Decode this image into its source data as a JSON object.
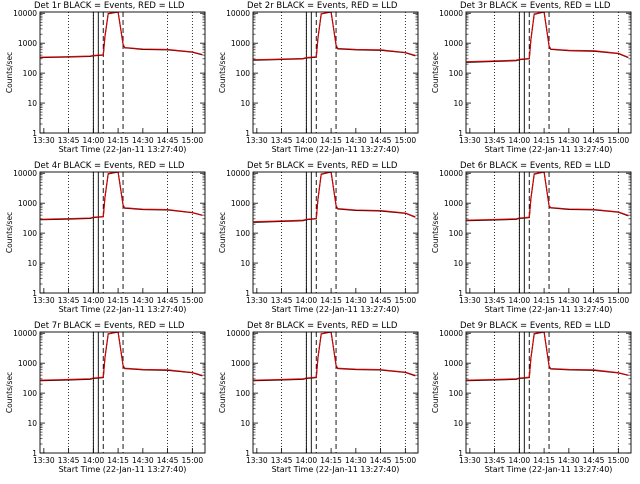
{
  "figure": {
    "rows": 3,
    "cols": 3,
    "colors": {
      "events": "#000000",
      "lld": "#dd0000",
      "axis": "#000000",
      "background": "#ffffff"
    }
  },
  "chart_data": [
    {
      "type": "line",
      "title": "Det 1r BLACK = Events, RED = LLD",
      "xlabel": "Start Time (22-Jan-11 13:27:40)",
      "ylabel": "Counts/sec",
      "yscale": "log",
      "ylim": [
        1,
        11000
      ],
      "xlim": [
        "13:27:40",
        "15:07:40"
      ],
      "x_ticks": [
        "13:30",
        "13:45",
        "14:00",
        "14:15",
        "14:30",
        "14:45",
        "15:00"
      ],
      "y_ticks": [
        "1",
        "10",
        "100",
        "1000",
        "10000"
      ],
      "dotted_lines": [
        "13:45",
        "14:00",
        "14:45",
        "15:00"
      ],
      "solid_lines": [
        "14:00",
        "14:03"
      ],
      "dashed_lines": [
        "14:06",
        "14:18"
      ],
      "series": [
        {
          "name": "Events",
          "color": "#000000",
          "x": [
            "13:28",
            "13:40",
            "13:58",
            "14:00",
            "14:06",
            "14:07",
            "14:09",
            "14:15",
            "14:18",
            "14:19",
            "14:30",
            "14:45",
            "15:00",
            "15:06"
          ],
          "y": [
            330,
            340,
            360,
            380,
            400,
            1600,
            9600,
            11000,
            900,
            700,
            620,
            600,
            500,
            410
          ]
        },
        {
          "name": "LLD",
          "color": "#dd0000",
          "x": [
            "13:28",
            "13:40",
            "13:58",
            "14:00",
            "14:06",
            "14:07",
            "14:09",
            "14:15",
            "14:18",
            "14:19",
            "14:30",
            "14:45",
            "15:00",
            "15:06"
          ],
          "y": [
            340,
            350,
            370,
            390,
            410,
            1650,
            9800,
            11000,
            920,
            720,
            640,
            620,
            510,
            420
          ]
        }
      ]
    },
    {
      "type": "line",
      "title": "Det 2r BLACK = Events, RED = LLD",
      "xlabel": "Start Time (22-Jan-11 13:27:40)",
      "ylabel": "Counts/sec",
      "yscale": "log",
      "ylim": [
        1,
        11000
      ],
      "xlim": [
        "13:27:40",
        "15:07:40"
      ],
      "x_ticks": [
        "13:30",
        "13:45",
        "14:00",
        "14:15",
        "14:30",
        "14:45",
        "15:00"
      ],
      "y_ticks": [
        "1",
        "10",
        "100",
        "1000",
        "10000"
      ],
      "dotted_lines": [
        "13:45",
        "14:00",
        "14:45",
        "15:00"
      ],
      "solid_lines": [
        "14:00",
        "14:03"
      ],
      "dashed_lines": [
        "14:06",
        "14:18"
      ],
      "series": [
        {
          "name": "Events",
          "color": "#000000",
          "x": [
            "13:28",
            "13:40",
            "13:58",
            "14:00",
            "14:06",
            "14:07",
            "14:09",
            "14:15",
            "14:18",
            "14:19",
            "14:30",
            "14:45",
            "15:00",
            "15:06"
          ],
          "y": [
            270,
            280,
            300,
            320,
            340,
            1400,
            9400,
            11000,
            850,
            650,
            600,
            580,
            480,
            380
          ]
        },
        {
          "name": "LLD",
          "color": "#dd0000",
          "x": [
            "13:28",
            "13:40",
            "13:58",
            "14:00",
            "14:06",
            "14:07",
            "14:09",
            "14:15",
            "14:18",
            "14:19",
            "14:30",
            "14:45",
            "15:00",
            "15:06"
          ],
          "y": [
            280,
            290,
            310,
            330,
            350,
            1450,
            9600,
            11000,
            870,
            670,
            620,
            600,
            490,
            390
          ]
        }
      ]
    },
    {
      "type": "line",
      "title": "Det 3r BLACK = Events, RED = LLD",
      "xlabel": "Start Time (22-Jan-11 13:27:40)",
      "ylabel": "Counts/sec",
      "yscale": "log",
      "ylim": [
        1,
        11000
      ],
      "xlim": [
        "13:27:40",
        "15:07:40"
      ],
      "x_ticks": [
        "13:30",
        "13:45",
        "14:00",
        "14:15",
        "14:30",
        "14:45",
        "15:00"
      ],
      "y_ticks": [
        "1",
        "10",
        "100",
        "1000",
        "10000"
      ],
      "dotted_lines": [
        "13:45",
        "14:00",
        "14:45",
        "15:00"
      ],
      "solid_lines": [
        "14:00",
        "14:03"
      ],
      "dashed_lines": [
        "14:06",
        "14:18"
      ],
      "series": [
        {
          "name": "Events",
          "color": "#000000",
          "x": [
            "13:28",
            "13:40",
            "13:58",
            "14:00",
            "14:06",
            "14:07",
            "14:09",
            "14:15",
            "14:18",
            "14:19",
            "14:30",
            "14:45",
            "15:00",
            "15:06"
          ],
          "y": [
            230,
            240,
            260,
            280,
            300,
            1300,
            9200,
            11000,
            800,
            620,
            560,
            540,
            450,
            330
          ]
        },
        {
          "name": "LLD",
          "color": "#dd0000",
          "x": [
            "13:28",
            "13:40",
            "13:58",
            "14:00",
            "14:06",
            "14:07",
            "14:09",
            "14:15",
            "14:18",
            "14:19",
            "14:30",
            "14:45",
            "15:00",
            "15:06"
          ],
          "y": [
            240,
            250,
            270,
            290,
            310,
            1350,
            9400,
            11000,
            820,
            640,
            580,
            560,
            460,
            340
          ]
        }
      ]
    },
    {
      "type": "line",
      "title": "Det 4r BLACK = Events, RED = LLD",
      "xlabel": "Start Time (22-Jan-11 13:27:40)",
      "ylabel": "Counts/sec",
      "yscale": "log",
      "ylim": [
        1,
        11000
      ],
      "xlim": [
        "13:27:40",
        "15:07:40"
      ],
      "x_ticks": [
        "13:30",
        "13:45",
        "14:00",
        "14:15",
        "14:30",
        "14:45",
        "15:00"
      ],
      "y_ticks": [
        "1",
        "10",
        "100",
        "1000",
        "10000"
      ],
      "dotted_lines": [
        "13:45",
        "14:00",
        "14:45",
        "15:00"
      ],
      "solid_lines": [
        "14:00",
        "14:03"
      ],
      "dashed_lines": [
        "14:06",
        "14:18"
      ],
      "series": [
        {
          "name": "Events",
          "color": "#000000",
          "x": [
            "13:28",
            "13:40",
            "13:58",
            "14:00",
            "14:06",
            "14:07",
            "14:09",
            "14:15",
            "14:18",
            "14:19",
            "14:30",
            "14:45",
            "15:00",
            "15:06"
          ],
          "y": [
            280,
            290,
            310,
            330,
            350,
            1500,
            9500,
            11000,
            850,
            680,
            610,
            590,
            480,
            390
          ]
        },
        {
          "name": "LLD",
          "color": "#dd0000",
          "x": [
            "13:28",
            "13:40",
            "13:58",
            "14:00",
            "14:06",
            "14:07",
            "14:09",
            "14:15",
            "14:18",
            "14:19",
            "14:30",
            "14:45",
            "15:00",
            "15:06"
          ],
          "y": [
            290,
            300,
            320,
            340,
            360,
            1550,
            9700,
            11000,
            870,
            700,
            630,
            610,
            490,
            400
          ]
        }
      ]
    },
    {
      "type": "line",
      "title": "Det 5r BLACK = Events, RED = LLD",
      "xlabel": "Start Time (22-Jan-11 13:27:40)",
      "ylabel": "Counts/sec",
      "yscale": "log",
      "ylim": [
        1,
        11000
      ],
      "xlim": [
        "13:27:40",
        "15:07:40"
      ],
      "x_ticks": [
        "13:30",
        "13:45",
        "14:00",
        "14:15",
        "14:30",
        "14:45",
        "15:00"
      ],
      "y_ticks": [
        "1",
        "10",
        "100",
        "1000",
        "10000"
      ],
      "dotted_lines": [
        "13:45",
        "14:00",
        "14:45",
        "15:00"
      ],
      "solid_lines": [
        "14:00",
        "14:03"
      ],
      "dashed_lines": [
        "14:06",
        "14:18"
      ],
      "series": [
        {
          "name": "Events",
          "color": "#000000",
          "x": [
            "13:28",
            "13:40",
            "13:58",
            "14:00",
            "14:06",
            "14:07",
            "14:09",
            "14:15",
            "14:18",
            "14:19",
            "14:30",
            "14:45",
            "15:00",
            "15:06"
          ],
          "y": [
            230,
            240,
            260,
            280,
            300,
            1300,
            9200,
            11000,
            820,
            640,
            570,
            550,
            460,
            340
          ]
        },
        {
          "name": "LLD",
          "color": "#dd0000",
          "x": [
            "13:28",
            "13:40",
            "13:58",
            "14:00",
            "14:06",
            "14:07",
            "14:09",
            "14:15",
            "14:18",
            "14:19",
            "14:30",
            "14:45",
            "15:00",
            "15:06"
          ],
          "y": [
            240,
            250,
            270,
            290,
            310,
            1350,
            9400,
            11000,
            840,
            660,
            590,
            570,
            470,
            350
          ]
        }
      ]
    },
    {
      "type": "line",
      "title": "Det 6r BLACK = Events, RED = LLD",
      "xlabel": "Start Time (22-Jan-11 13:27:40)",
      "ylabel": "Counts/sec",
      "yscale": "log",
      "ylim": [
        1,
        11000
      ],
      "xlim": [
        "13:27:40",
        "15:07:40"
      ],
      "x_ticks": [
        "13:30",
        "13:45",
        "14:00",
        "14:15",
        "14:30",
        "14:45",
        "15:00"
      ],
      "y_ticks": [
        "1",
        "10",
        "100",
        "1000",
        "10000"
      ],
      "dotted_lines": [
        "13:45",
        "14:00",
        "14:45",
        "15:00"
      ],
      "solid_lines": [
        "14:00",
        "14:03"
      ],
      "dashed_lines": [
        "14:06",
        "14:18"
      ],
      "series": [
        {
          "name": "Events",
          "color": "#000000",
          "x": [
            "13:28",
            "13:40",
            "13:58",
            "14:00",
            "14:06",
            "14:07",
            "14:09",
            "14:15",
            "14:18",
            "14:19",
            "14:30",
            "14:45",
            "15:00",
            "15:06"
          ],
          "y": [
            260,
            270,
            290,
            310,
            330,
            1400,
            9300,
            11000,
            800,
            700,
            620,
            600,
            500,
            380
          ]
        },
        {
          "name": "LLD",
          "color": "#dd0000",
          "x": [
            "13:28",
            "13:40",
            "13:58",
            "14:00",
            "14:06",
            "14:07",
            "14:09",
            "14:15",
            "14:18",
            "14:19",
            "14:30",
            "14:45",
            "15:00",
            "15:06"
          ],
          "y": [
            270,
            280,
            300,
            320,
            340,
            1450,
            9500,
            11000,
            820,
            720,
            640,
            620,
            510,
            390
          ]
        }
      ]
    },
    {
      "type": "line",
      "title": "Det 7r BLACK = Events, RED = LLD",
      "xlabel": "Start Time (22-Jan-11 13:27:40)",
      "ylabel": "Counts/sec",
      "yscale": "log",
      "ylim": [
        1,
        11000
      ],
      "xlim": [
        "13:27:40",
        "15:07:40"
      ],
      "x_ticks": [
        "13:30",
        "13:45",
        "14:00",
        "14:15",
        "14:30",
        "14:45",
        "15:00"
      ],
      "y_ticks": [
        "1",
        "10",
        "100",
        "1000",
        "10000"
      ],
      "dotted_lines": [
        "13:45",
        "14:00",
        "14:45",
        "15:00"
      ],
      "solid_lines": [
        "14:00",
        "14:03"
      ],
      "dashed_lines": [
        "14:06",
        "14:18"
      ],
      "series": [
        {
          "name": "Events",
          "color": "#000000",
          "x": [
            "13:28",
            "13:40",
            "13:58",
            "14:00",
            "14:06",
            "14:07",
            "14:09",
            "14:15",
            "14:18",
            "14:19",
            "14:30",
            "14:45",
            "15:00",
            "15:06"
          ],
          "y": [
            260,
            270,
            290,
            310,
            330,
            1450,
            9400,
            11000,
            820,
            660,
            600,
            580,
            480,
            380
          ]
        },
        {
          "name": "LLD",
          "color": "#dd0000",
          "x": [
            "13:28",
            "13:40",
            "13:58",
            "14:00",
            "14:06",
            "14:07",
            "14:09",
            "14:15",
            "14:18",
            "14:19",
            "14:30",
            "14:45",
            "15:00",
            "15:06"
          ],
          "y": [
            270,
            280,
            300,
            320,
            340,
            1500,
            9600,
            11000,
            840,
            680,
            620,
            600,
            490,
            390
          ]
        }
      ]
    },
    {
      "type": "line",
      "title": "Det 8r BLACK = Events, RED = LLD",
      "xlabel": "Start Time (22-Jan-11 13:27:40)",
      "ylabel": "Counts/sec",
      "yscale": "log",
      "ylim": [
        1,
        11000
      ],
      "xlim": [
        "13:27:40",
        "15:07:40"
      ],
      "x_ticks": [
        "13:30",
        "13:45",
        "14:00",
        "14:15",
        "14:30",
        "14:45",
        "15:00"
      ],
      "y_ticks": [
        "1",
        "10",
        "100",
        "1000",
        "10000"
      ],
      "dotted_lines": [
        "13:45",
        "14:00",
        "14:45",
        "15:00"
      ],
      "solid_lines": [
        "14:00",
        "14:03"
      ],
      "dashed_lines": [
        "14:06",
        "14:18"
      ],
      "series": [
        {
          "name": "Events",
          "color": "#000000",
          "x": [
            "13:28",
            "13:40",
            "13:58",
            "14:00",
            "14:06",
            "14:07",
            "14:09",
            "14:15",
            "14:18",
            "14:19",
            "14:30",
            "14:45",
            "15:00",
            "15:06"
          ],
          "y": [
            260,
            270,
            290,
            310,
            330,
            1450,
            9400,
            11000,
            830,
            660,
            610,
            590,
            490,
            380
          ]
        },
        {
          "name": "LLD",
          "color": "#dd0000",
          "x": [
            "13:28",
            "13:40",
            "13:58",
            "14:00",
            "14:06",
            "14:07",
            "14:09",
            "14:15",
            "14:18",
            "14:19",
            "14:30",
            "14:45",
            "15:00",
            "15:06"
          ],
          "y": [
            270,
            280,
            300,
            320,
            340,
            1500,
            9600,
            11000,
            850,
            680,
            630,
            610,
            500,
            390
          ]
        }
      ]
    },
    {
      "type": "line",
      "title": "Det 9r BLACK = Events, RED = LLD",
      "xlabel": "Start Time (22-Jan-11 13:27:40)",
      "ylabel": "Counts/sec",
      "yscale": "log",
      "ylim": [
        1,
        11000
      ],
      "xlim": [
        "13:27:40",
        "15:07:40"
      ],
      "x_ticks": [
        "13:30",
        "13:45",
        "14:00",
        "14:15",
        "14:30",
        "14:45",
        "15:00"
      ],
      "y_ticks": [
        "1",
        "10",
        "100",
        "1000",
        "10000"
      ],
      "dotted_lines": [
        "13:45",
        "14:00",
        "14:45",
        "15:00"
      ],
      "solid_lines": [
        "14:00",
        "14:03"
      ],
      "dashed_lines": [
        "14:06",
        "14:18"
      ],
      "series": [
        {
          "name": "Events",
          "color": "#000000",
          "x": [
            "13:28",
            "13:40",
            "13:58",
            "14:00",
            "14:06",
            "14:07",
            "14:09",
            "14:15",
            "14:18",
            "14:19",
            "14:30",
            "14:45",
            "15:00",
            "15:06"
          ],
          "y": [
            260,
            270,
            290,
            310,
            330,
            1450,
            9500,
            11000,
            800,
            640,
            600,
            580,
            470,
            390
          ]
        },
        {
          "name": "LLD",
          "color": "#dd0000",
          "x": [
            "13:28",
            "13:40",
            "13:58",
            "14:00",
            "14:06",
            "14:07",
            "14:09",
            "14:15",
            "14:18",
            "14:19",
            "14:30",
            "14:45",
            "15:00",
            "15:06"
          ],
          "y": [
            270,
            280,
            300,
            320,
            340,
            1500,
            9700,
            11000,
            820,
            660,
            620,
            600,
            480,
            400
          ]
        }
      ]
    }
  ]
}
